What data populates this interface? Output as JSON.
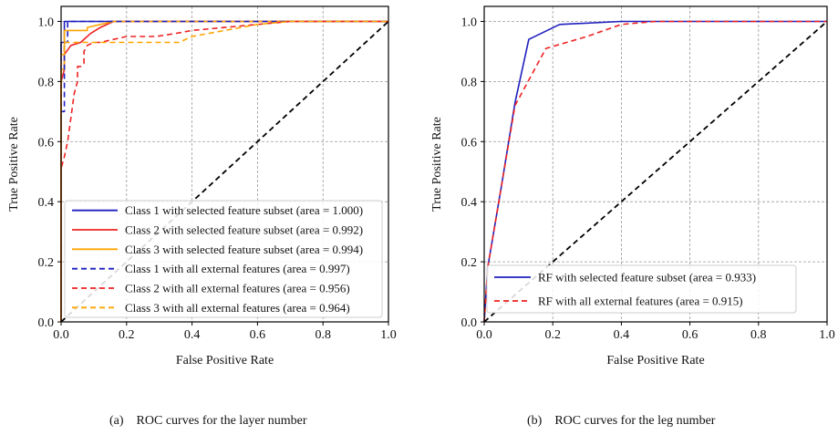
{
  "chart_data": [
    {
      "type": "line",
      "xlabel": "False Positive Rate",
      "ylabel": "True Positive Rate",
      "xlim": [
        0.0,
        1.0
      ],
      "ylim": [
        0.0,
        1.05
      ],
      "xticks": [
        "0.0",
        "0.2",
        "0.4",
        "0.6",
        "0.8",
        "1.0"
      ],
      "yticks": [
        "0.0",
        "0.2",
        "0.4",
        "0.6",
        "0.8",
        "1.0"
      ],
      "grid": true,
      "legend_position": "lower-right",
      "series": [
        {
          "name": "Class 1 with selected feature subset (area = 1.000)",
          "color": "#1f1fbf",
          "dash": "solid",
          "x": [
            0,
            0,
            0.01,
            0.01,
            1.0
          ],
          "y": [
            0,
            0.93,
            0.93,
            1.0,
            1.0
          ]
        },
        {
          "name": "Class 2 with selected feature subset (area = 0.992)",
          "color": "#ee2222",
          "dash": "solid",
          "x": [
            0,
            0,
            0.01,
            0.01,
            0.03,
            0.06,
            0.09,
            0.12,
            0.16,
            1.0
          ],
          "y": [
            0,
            0.8,
            0.84,
            0.89,
            0.92,
            0.93,
            0.96,
            0.98,
            1.0,
            1.0
          ]
        },
        {
          "name": "Class 3 with selected feature subset (area = 0.994)",
          "color": "#ffa500",
          "dash": "solid",
          "x": [
            0,
            0,
            0.01,
            0.01,
            0.04,
            0.08,
            0.08,
            0.12,
            0.16,
            1.0
          ],
          "y": [
            0,
            0.84,
            0.84,
            0.97,
            0.97,
            0.97,
            0.98,
            0.99,
            1.0,
            1.0
          ]
        },
        {
          "name": "Class 1 with all external features (area = 0.997)",
          "color": "#1f1fbf",
          "dash": "dashed",
          "x": [
            0,
            0,
            0.01,
            0.01,
            0.02,
            0.02,
            1.0
          ],
          "y": [
            0,
            0.7,
            0.7,
            0.93,
            0.93,
            1.0,
            1.0
          ]
        },
        {
          "name": "Class 2 with all external features (area = 0.956)",
          "color": "#ee2222",
          "dash": "dashed",
          "x": [
            0,
            0,
            0.01,
            0.02,
            0.03,
            0.04,
            0.05,
            0.05,
            0.06,
            0.07,
            0.07,
            0.08,
            0.1,
            0.12,
            0.2,
            0.29,
            0.35,
            0.4,
            0.5,
            0.6,
            0.7,
            0.75,
            1.0
          ],
          "y": [
            0,
            0.51,
            0.55,
            0.6,
            0.68,
            0.76,
            0.8,
            0.85,
            0.85,
            0.86,
            0.9,
            0.92,
            0.93,
            0.93,
            0.95,
            0.95,
            0.96,
            0.97,
            0.98,
            0.99,
            1.0,
            1.0,
            1.0
          ]
        },
        {
          "name": "Class 3 with all external features (area = 0.964)",
          "color": "#ffa500",
          "dash": "dashed",
          "x": [
            0,
            0,
            0.01,
            0.01,
            0.04,
            0.04,
            0.36,
            0.4,
            0.5,
            0.6,
            0.7,
            1.0
          ],
          "y": [
            0,
            0.89,
            0.89,
            0.93,
            0.93,
            0.93,
            0.93,
            0.95,
            0.97,
            0.99,
            1.0,
            1.0
          ]
        },
        {
          "name": "",
          "color": "#000000",
          "dash": "dashed",
          "x": [
            0,
            1
          ],
          "y": [
            0,
            1
          ]
        }
      ],
      "caption": {
        "id": "(a)",
        "text": "ROC curves for the layer number"
      }
    },
    {
      "type": "line",
      "xlabel": "False Positive Rate",
      "ylabel": "True Positive Rate",
      "xlim": [
        0.0,
        1.0
      ],
      "ylim": [
        0.0,
        1.05
      ],
      "xticks": [
        "0.0",
        "0.2",
        "0.4",
        "0.6",
        "0.8",
        "1.0"
      ],
      "yticks": [
        "0.0",
        "0.2",
        "0.4",
        "0.6",
        "0.8",
        "1.0"
      ],
      "grid": true,
      "legend_position": "lower-right",
      "series": [
        {
          "name": "RF with selected feature subset (area = 0.933)",
          "color": "#1f1fbf",
          "dash": "solid",
          "x": [
            0,
            0.01,
            0.05,
            0.09,
            0.13,
            0.22,
            0.4,
            0.6,
            1.0
          ],
          "y": [
            0,
            0.18,
            0.45,
            0.73,
            0.94,
            0.99,
            1.0,
            1.0,
            1.0
          ]
        },
        {
          "name": "RF with all external features (area = 0.915)",
          "color": "#ee2222",
          "dash": "dashed",
          "x": [
            0,
            0.01,
            0.05,
            0.09,
            0.18,
            0.3,
            0.4,
            0.5,
            0.6,
            1.0
          ],
          "y": [
            0,
            0.18,
            0.45,
            0.72,
            0.91,
            0.95,
            0.99,
            1.0,
            1.0,
            1.0
          ]
        },
        {
          "name": "",
          "color": "#000000",
          "dash": "dashed",
          "x": [
            0,
            1
          ],
          "y": [
            0,
            1
          ]
        }
      ],
      "caption": {
        "id": "(b)",
        "text": "ROC curves for the leg number"
      }
    }
  ]
}
